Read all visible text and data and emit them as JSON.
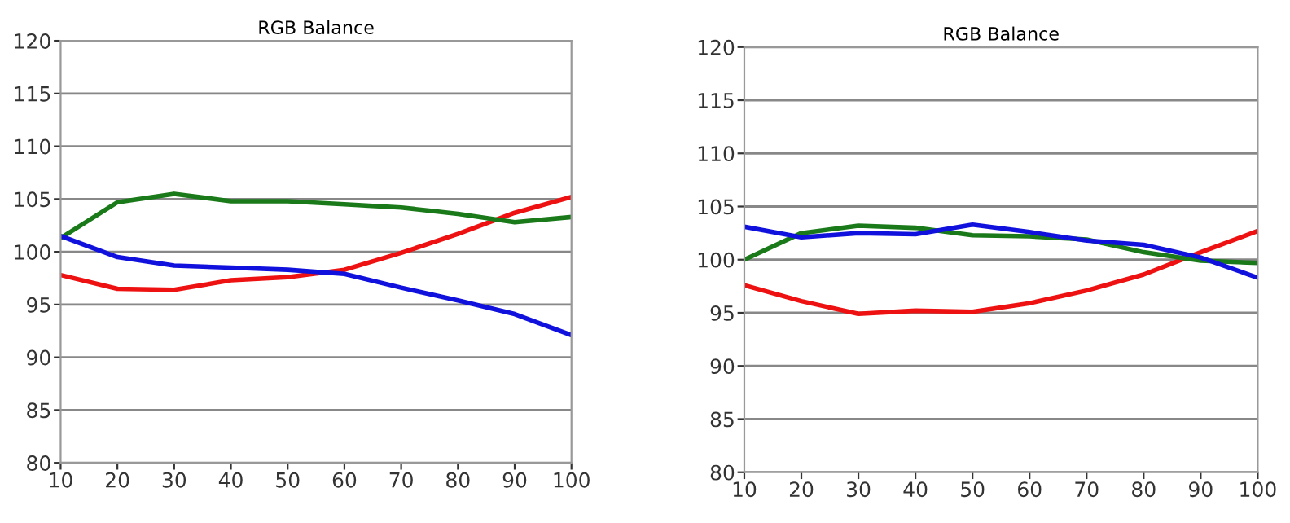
{
  "chart_data": [
    {
      "type": "line",
      "title": "RGB Balance",
      "x": [
        10,
        20,
        30,
        40,
        50,
        60,
        70,
        80,
        90,
        100
      ],
      "xlim": [
        10,
        100
      ],
      "xticks": [
        10,
        20,
        30,
        40,
        50,
        60,
        70,
        80,
        90,
        100
      ],
      "ylim": [
        80,
        120
      ],
      "yticks": [
        80,
        85,
        90,
        95,
        100,
        105,
        110,
        115,
        120
      ],
      "grid": "y",
      "legend": false,
      "marker": "none",
      "line_style": "solid",
      "series": [
        {
          "color": "#ee1111",
          "values": [
            97.8,
            96.5,
            96.4,
            97.3,
            97.6,
            98.3,
            99.9,
            101.7,
            103.7,
            105.2
          ]
        },
        {
          "color": "#1a7a1a",
          "values": [
            101.3,
            104.7,
            105.5,
            104.8,
            104.8,
            104.5,
            104.2,
            103.6,
            102.8,
            103.3
          ]
        },
        {
          "color": "#1111dd",
          "values": [
            101.5,
            99.5,
            98.7,
            98.5,
            98.3,
            97.9,
            96.6,
            95.4,
            94.1,
            92.1
          ]
        }
      ]
    },
    {
      "type": "line",
      "title": "RGB Balance",
      "x": [
        10,
        20,
        30,
        40,
        50,
        60,
        70,
        80,
        90,
        100
      ],
      "xlim": [
        10,
        100
      ],
      "xticks": [
        10,
        20,
        30,
        40,
        50,
        60,
        70,
        80,
        90,
        100
      ],
      "ylim": [
        80,
        120
      ],
      "yticks": [
        80,
        85,
        90,
        95,
        100,
        105,
        110,
        115,
        120
      ],
      "grid": "y",
      "legend": false,
      "marker": "none",
      "line_style": "solid",
      "series": [
        {
          "color": "#ee1111",
          "values": [
            97.6,
            96.1,
            94.9,
            95.2,
            95.1,
            95.9,
            97.1,
            98.6,
            100.7,
            102.7
          ]
        },
        {
          "color": "#1a7a1a",
          "values": [
            100.0,
            102.5,
            103.2,
            103.0,
            102.3,
            102.2,
            101.9,
            100.7,
            99.9,
            99.7
          ]
        },
        {
          "color": "#1111dd",
          "values": [
            103.1,
            102.1,
            102.5,
            102.4,
            103.3,
            102.6,
            101.8,
            101.4,
            100.2,
            98.3
          ]
        }
      ]
    }
  ]
}
